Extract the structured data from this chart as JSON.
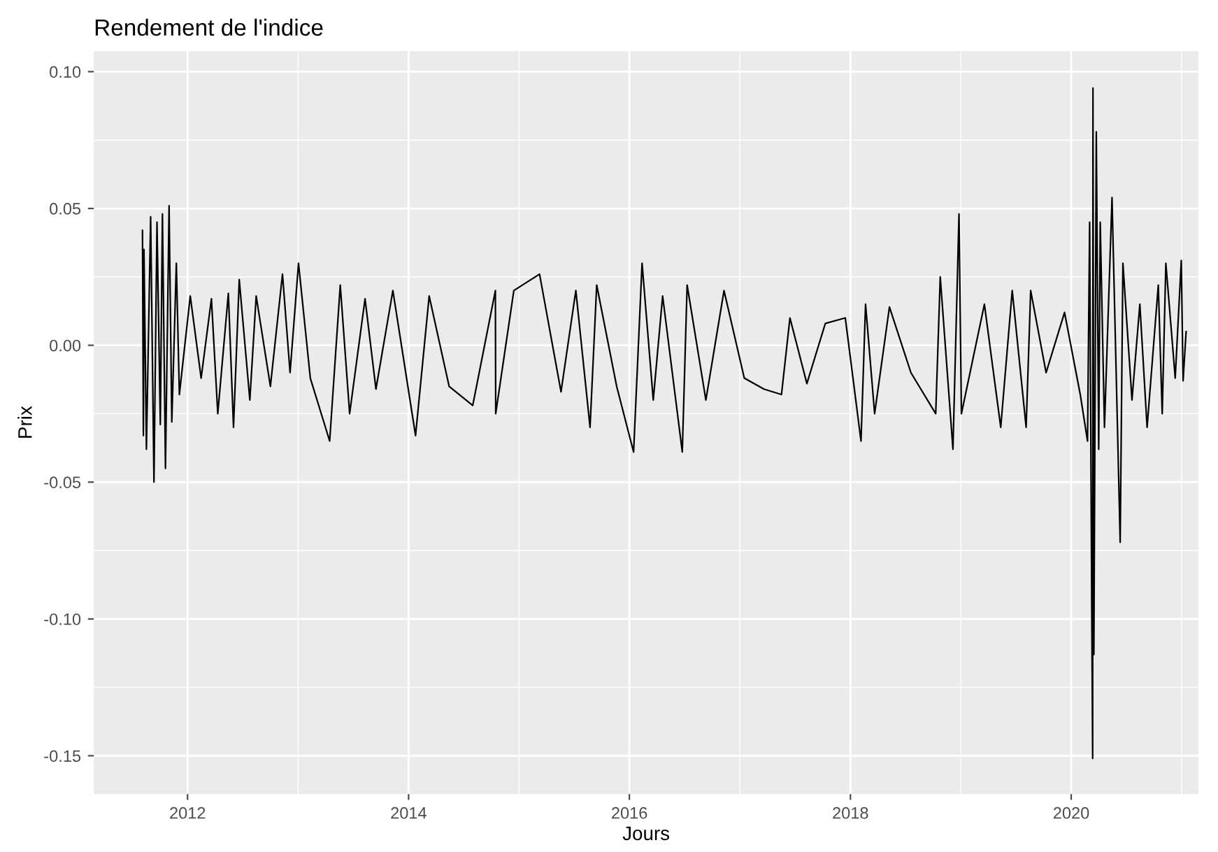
{
  "chart_data": {
    "type": "line",
    "title": "Rendement de l'indice",
    "xlabel": "Jours",
    "ylabel": "Prix",
    "xlim": [
      "2011-02-25",
      "2021-02-25"
    ],
    "xticks": [
      "2012",
      "2014",
      "2016",
      "2018",
      "2020"
    ],
    "ylim": [
      -0.164,
      0.1075
    ],
    "yticks": [
      {
        "value": -0.15,
        "label": "-0.15"
      },
      {
        "value": -0.1,
        "label": "-0.10"
      },
      {
        "value": -0.05,
        "label": "-0.05"
      },
      {
        "value": 0,
        "label": "0.00"
      },
      {
        "value": 0.05,
        "label": "0.05"
      },
      {
        "value": 0.1,
        "label": "0.10"
      }
    ],
    "grid": true,
    "legend": false,
    "series": [
      {
        "color": "#000000",
        "x": [
          "2011-08-05",
          "2011-08-08",
          "2011-08-10",
          "2011-08-18",
          "2011-09-01",
          "2011-09-12",
          "2011-09-22",
          "2011-10-03",
          "2011-10-10",
          "2011-10-20",
          "2011-11-01",
          "2011-11-10",
          "2011-11-25",
          "2011-12-05",
          "2012-01-10",
          "2012-02-15",
          "2012-03-20",
          "2012-04-10",
          "2012-05-15",
          "2012-06-01",
          "2012-06-20",
          "2012-07-25",
          "2012-08-15",
          "2012-10-01",
          "2012-11-10",
          "2012-12-05",
          "2013-01-02",
          "2013-02-10",
          "2013-04-15",
          "2013-05-20",
          "2013-06-20",
          "2013-08-10",
          "2013-09-15",
          "2013-11-10",
          "2014-01-24",
          "2014-03-10",
          "2014-05-15",
          "2014-08-01",
          "2014-10-15",
          "2014-10-16",
          "2014-12-15",
          "2015-03-10",
          "2015-05-20",
          "2015-07-08",
          "2015-08-24",
          "2015-09-15",
          "2015-11-20",
          "2016-01-15",
          "2016-02-12",
          "2016-03-20",
          "2016-04-20",
          "2016-06-24",
          "2016-07-10",
          "2016-09-10",
          "2016-11-09",
          "2017-01-15",
          "2017-03-21",
          "2017-05-18",
          "2017-06-15",
          "2017-08-10",
          "2017-10-10",
          "2017-12-15",
          "2018-02-05",
          "2018-02-20",
          "2018-03-22",
          "2018-05-10",
          "2018-07-20",
          "2018-10-10",
          "2018-10-25",
          "2018-12-06",
          "2018-12-26",
          "2019-01-03",
          "2019-03-20",
          "2019-05-13",
          "2019-06-20",
          "2019-08-05",
          "2019-08-20",
          "2019-10-10",
          "2019-12-10",
          "2020-01-31",
          "2020-02-24",
          "2020-03-02",
          "2020-03-09",
          "2020-03-12",
          "2020-03-13",
          "2020-03-16",
          "2020-03-24",
          "2020-04-01",
          "2020-04-06",
          "2020-04-20",
          "2020-05-15",
          "2020-06-11",
          "2020-06-20",
          "2020-07-20",
          "2020-08-15",
          "2020-09-08",
          "2020-10-15",
          "2020-10-28",
          "2020-11-09",
          "2020-12-10",
          "2020-12-30",
          "2021-01-05",
          "2021-01-15"
        ],
        "values": [
          0.042,
          -0.033,
          0.035,
          -0.038,
          0.047,
          -0.05,
          0.045,
          -0.029,
          0.048,
          -0.045,
          0.051,
          -0.028,
          0.03,
          -0.018,
          0.018,
          -0.012,
          0.017,
          -0.025,
          0.019,
          -0.03,
          0.024,
          -0.02,
          0.018,
          -0.015,
          0.026,
          -0.01,
          0.03,
          -0.012,
          -0.035,
          0.022,
          -0.025,
          0.017,
          -0.016,
          0.02,
          -0.033,
          0.018,
          -0.015,
          -0.022,
          0.02,
          -0.025,
          0.02,
          0.026,
          -0.017,
          0.02,
          -0.03,
          0.022,
          -0.015,
          -0.039,
          0.03,
          -0.02,
          0.018,
          -0.039,
          0.022,
          -0.02,
          0.02,
          -0.012,
          -0.016,
          -0.018,
          0.01,
          -0.014,
          0.008,
          0.01,
          -0.035,
          0.015,
          -0.025,
          0.014,
          -0.01,
          -0.025,
          0.025,
          -0.038,
          0.048,
          -0.025,
          0.015,
          -0.03,
          0.02,
          -0.03,
          0.02,
          -0.01,
          0.012,
          -0.018,
          -0.035,
          0.045,
          -0.097,
          -0.151,
          0.094,
          -0.113,
          0.078,
          -0.038,
          0.045,
          -0.03,
          0.054,
          -0.072,
          0.03,
          -0.02,
          0.015,
          -0.03,
          0.022,
          -0.025,
          0.03,
          -0.012,
          0.031,
          -0.013,
          0.005
        ]
      }
    ]
  }
}
